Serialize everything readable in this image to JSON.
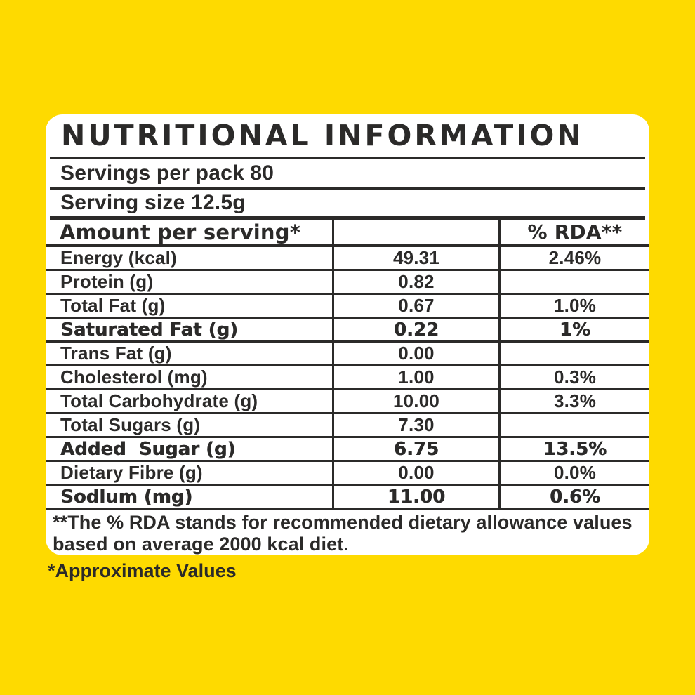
{
  "theme": {
    "bg": "#FEDA00",
    "card": "#FFFFFF",
    "ink": "#2B2A29"
  },
  "label": {
    "title": "NUTRITIONAL INFORMATION",
    "servings_per_pack": "Servings per pack 80",
    "serving_size": "Serving size 12.5g",
    "header": {
      "amount": "Amount per serving*",
      "value": "",
      "rda": "% RDA**"
    },
    "rows": [
      {
        "label": "Energy (kcal)",
        "value": "49.31",
        "rda": "2.46%"
      },
      {
        "label": "Protein (g)",
        "value": "0.82",
        "rda": ""
      },
      {
        "label": "Total Fat (g)",
        "value": "0.67",
        "rda": "1.0%"
      },
      {
        "label": "Saturated Fat (g)",
        "value": "0.22",
        "rda": "1%"
      },
      {
        "label": "Trans Fat (g)",
        "value": "0.00",
        "rda": ""
      },
      {
        "label": "Cholesterol (mg)",
        "value": "1.00",
        "rda": "0.3%"
      },
      {
        "label": "Total Carbohydrate (g)",
        "value": "10.00",
        "rda": "3.3%"
      },
      {
        "label": "Total Sugars (g)",
        "value": "7.30",
        "rda": ""
      },
      {
        "label": "Added  Sugar (g)",
        "value": "6.75",
        "rda": "13.5%"
      },
      {
        "label": "Dietary Fibre (g)",
        "value": "0.00",
        "rda": "0.0%"
      },
      {
        "label": "Sodlum (mg)",
        "value": "11.00",
        "rda": "0.6%"
      }
    ],
    "footnote": "**The % RDA stands for recommended dietary allowance values\nbased on average 2000 kcal diet.",
    "approximate_note": "*Approximate Values"
  }
}
